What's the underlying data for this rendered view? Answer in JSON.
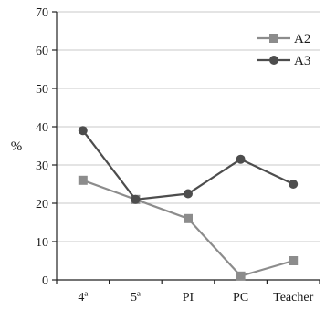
{
  "chart_data": {
    "type": "line",
    "categories": [
      "4ª",
      "5ª",
      "PI",
      "PC",
      "Teacher"
    ],
    "series": [
      {
        "name": "A2",
        "values": [
          26,
          21,
          16,
          1,
          5
        ],
        "color": "#8c8c8c",
        "marker": "square"
      },
      {
        "name": "A3",
        "values": [
          39,
          21,
          22.5,
          31.5,
          25
        ],
        "color": "#4d4d4d",
        "marker": "circle"
      }
    ],
    "title": "",
    "xlabel": "",
    "ylabel": "%",
    "ylim": [
      0,
      70
    ],
    "yticks": [
      "0",
      "10",
      "20",
      "30",
      "40",
      "50",
      "60",
      "70"
    ],
    "grid": true,
    "legend_position": "top-right"
  }
}
